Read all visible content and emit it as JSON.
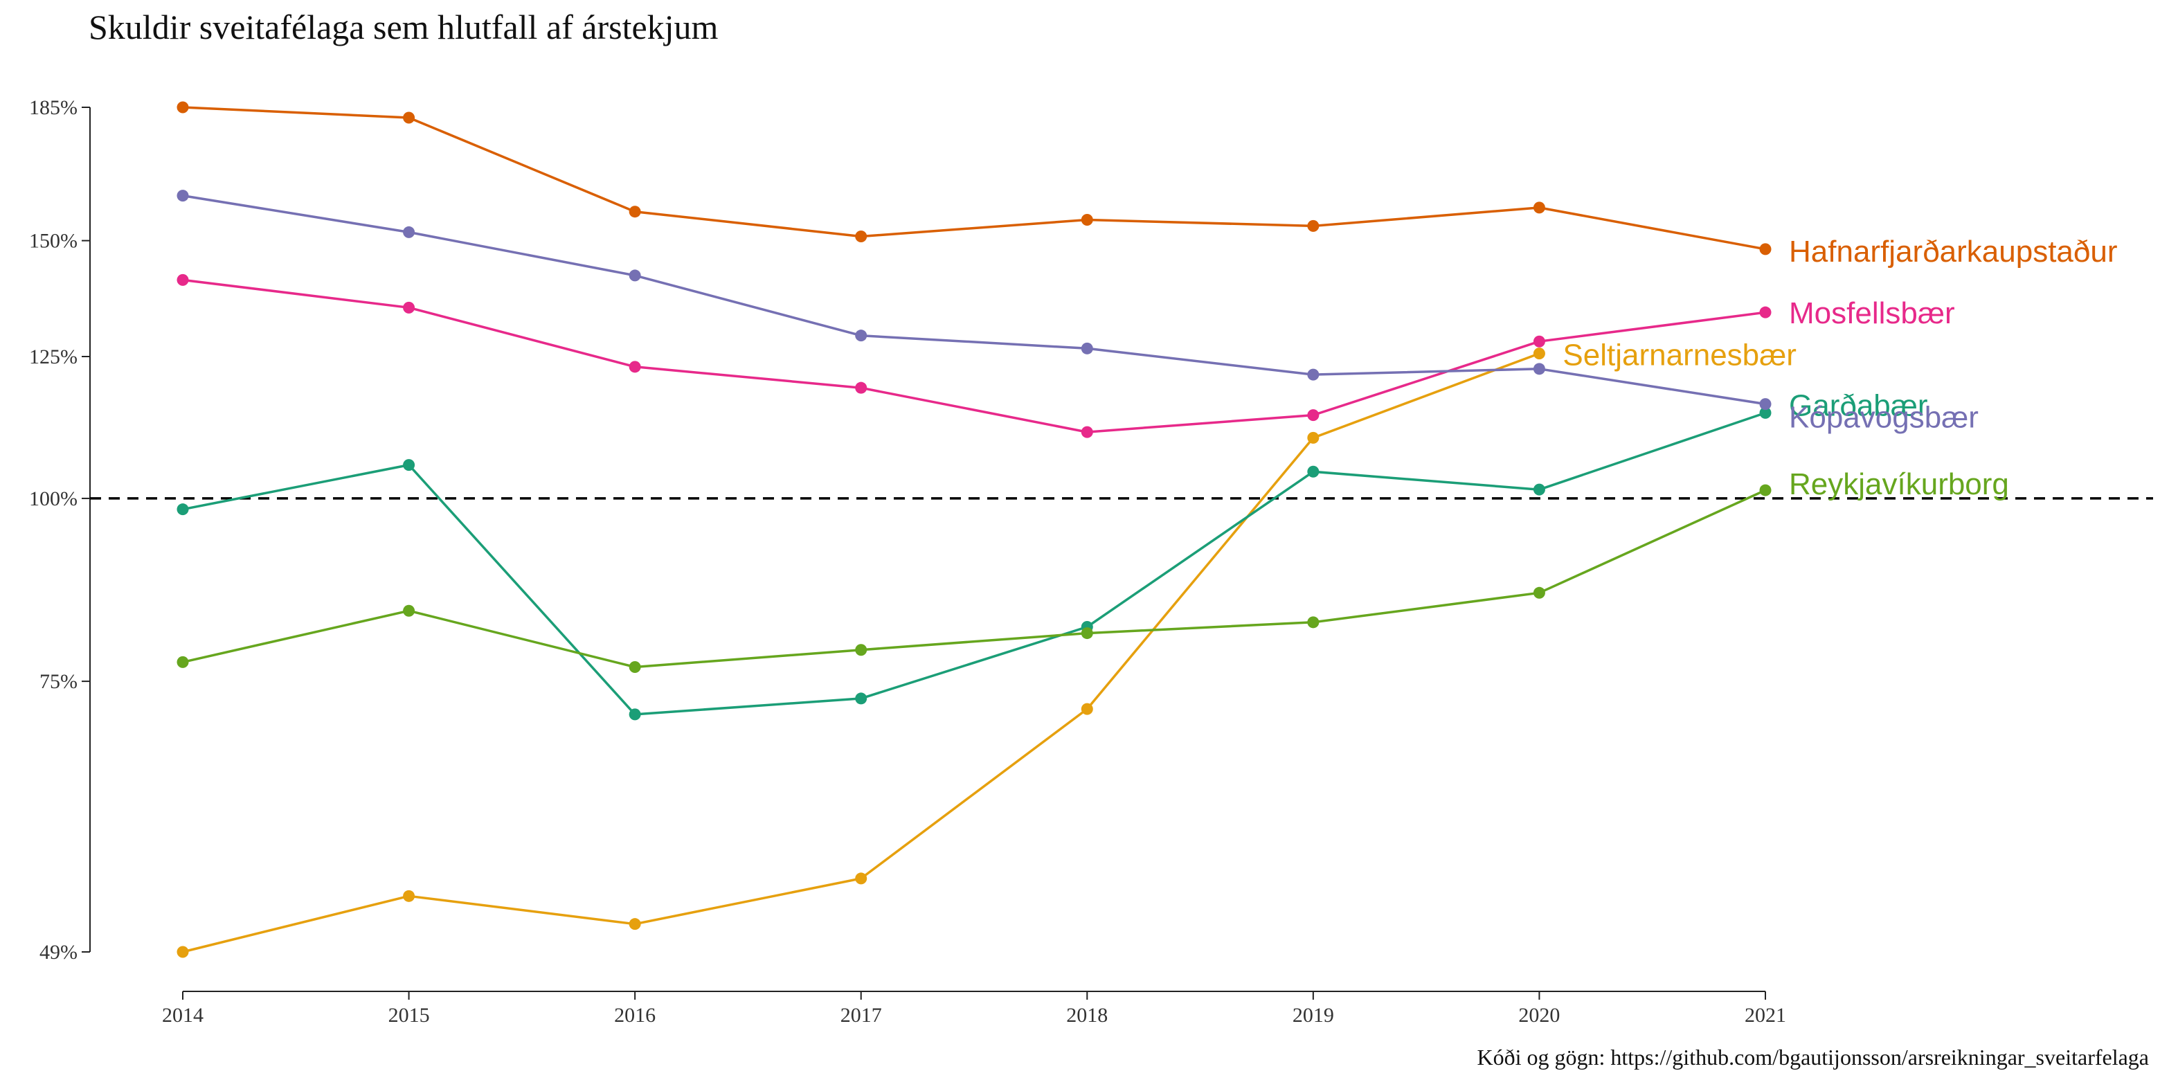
{
  "chart_data": {
    "type": "line",
    "title": "Skuldir sveitafélaga sem hlutfall af árstekjum",
    "caption": "Kóði og gögn: https://github.com/bgautijonsson/arsreikningar_sveitarfelaga",
    "xlabel": "",
    "ylabel": "",
    "x": [
      2014,
      2015,
      2016,
      2017,
      2018,
      2019,
      2020,
      2021
    ],
    "x_ticks": [
      "2014",
      "2015",
      "2016",
      "2017",
      "2018",
      "2019",
      "2020",
      "2021"
    ],
    "y_ticks": [
      {
        "value": 49,
        "label": "49%"
      },
      {
        "value": 75,
        "label": "75%"
      },
      {
        "value": 100,
        "label": "100%"
      },
      {
        "value": 125,
        "label": "125%"
      },
      {
        "value": 150,
        "label": "150%"
      },
      {
        "value": 185,
        "label": "185%"
      }
    ],
    "ylim": [
      49,
      185
    ],
    "y_scale": "log",
    "reference_line": {
      "value": 100,
      "style": "dashed",
      "color": "#000000"
    },
    "grid": false,
    "legend": "direct-labels-right",
    "series": [
      {
        "name": "Hafnarfjarðarkaupstaður",
        "color": "#D95F02",
        "values": [
          185,
          182,
          157,
          151,
          155,
          153.5,
          158,
          148
        ]
      },
      {
        "name": "Mosfellsbær",
        "color": "#E7298A",
        "values": [
          141,
          135,
          123,
          119,
          111,
          114,
          128,
          134
        ]
      },
      {
        "name": "Seltjarnarnesbær",
        "color": "#E6A00E",
        "values": [
          49,
          53.5,
          51.2,
          55,
          71.8,
          110,
          125.6,
          null
        ]
      },
      {
        "name": "Garðabær",
        "color": "#1B9E77",
        "values": [
          98.3,
          105.4,
          71.2,
          73,
          81.7,
          104.3,
          101.4,
          114.4
        ]
      },
      {
        "name": "Kópavogsbær",
        "color": "#7570B3",
        "values": [
          161,
          152,
          142,
          129.2,
          126.6,
          121.5,
          122.6,
          116
        ]
      },
      {
        "name": "Reykjavíkurborg",
        "color": "#66A61E",
        "values": [
          77.3,
          83.8,
          76.7,
          78.8,
          80.9,
          82.3,
          86.2,
          101.3
        ]
      }
    ]
  }
}
